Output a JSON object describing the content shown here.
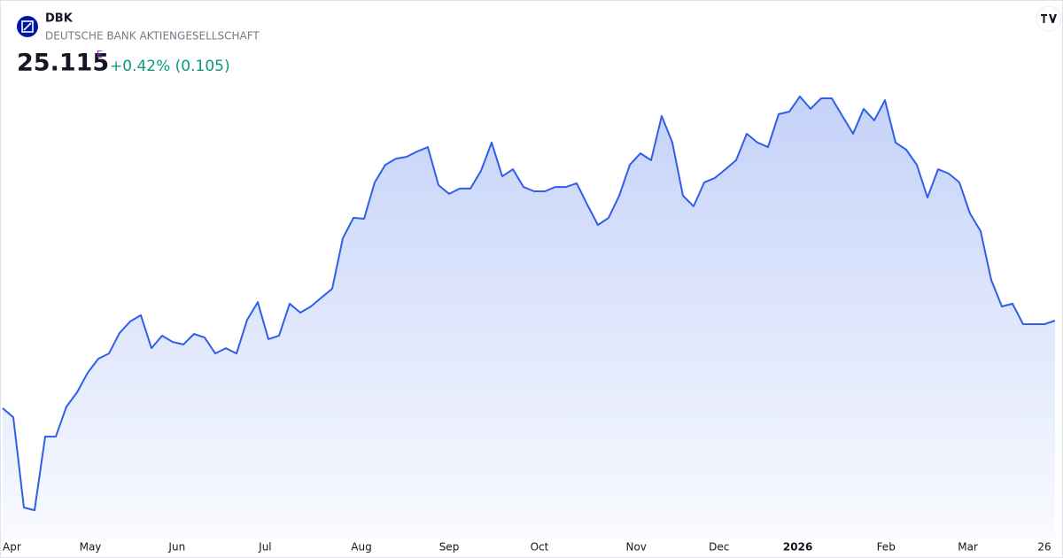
{
  "chart_data": {
    "type": "area",
    "symbol": "DBK",
    "company": "DEUTSCHE BANK AKTIENGESELLSCHAFT",
    "exchange_flag": "E",
    "change": "+0.42% (0.105)",
    "color": "#2f5fe8",
    "xlim": [
      0,
      99
    ],
    "ylim": [
      16,
      36
    ],
    "xticks": [
      {
        "value": 0.75,
        "label": "Apr"
      },
      {
        "value": 8.25,
        "label": "May"
      },
      {
        "value": 16.4,
        "label": "Jun"
      },
      {
        "value": 24.7,
        "label": "Jul"
      },
      {
        "value": 33.75,
        "label": "Aug"
      },
      {
        "value": 42,
        "label": "Sep"
      },
      {
        "value": 50.5,
        "label": "Oct"
      },
      {
        "value": 59.6,
        "label": "Nov"
      },
      {
        "value": 67.4,
        "label": "Dec"
      },
      {
        "value": 74.8,
        "label": "2026"
      },
      {
        "value": 83.1,
        "label": "Feb"
      },
      {
        "value": 90.8,
        "label": "Mar"
      },
      {
        "value": 98,
        "label": "26"
      }
    ],
    "series": [
      {
        "name": "DBK",
        "color": "#2f5fe8",
        "values": [
          21.31,
          20.92,
          17.0,
          16.88,
          20.08,
          20.08,
          21.38,
          22.0,
          22.85,
          23.46,
          23.69,
          24.58,
          25.08,
          25.35,
          23.92,
          24.46,
          24.19,
          24.08,
          24.54,
          24.38,
          23.69,
          23.92,
          23.69,
          25.15,
          25.92,
          24.31,
          24.46,
          25.85,
          25.46,
          25.73,
          26.12,
          26.5,
          28.69,
          29.58,
          29.54,
          31.12,
          31.88,
          32.15,
          32.23,
          32.46,
          32.65,
          31.0,
          30.62,
          30.85,
          30.85,
          31.62,
          32.85,
          31.38,
          31.69,
          30.92,
          30.73,
          30.73,
          30.92,
          30.92,
          31.08,
          30.15,
          29.27,
          29.58,
          30.54,
          31.88,
          32.38,
          32.08,
          34.0,
          32.85,
          30.54,
          30.08,
          31.12,
          31.31,
          31.69,
          32.08,
          33.23,
          32.85,
          32.65,
          34.08,
          34.19,
          34.85,
          34.31,
          34.77,
          34.77,
          34.0,
          33.23,
          34.31,
          33.81,
          34.69,
          32.85,
          32.54,
          31.88,
          30.46,
          31.69,
          31.5,
          31.12,
          29.77,
          29.0,
          26.88,
          25.73,
          25.85,
          24.96,
          24.96,
          24.96,
          25.115
        ]
      }
    ]
  }
}
